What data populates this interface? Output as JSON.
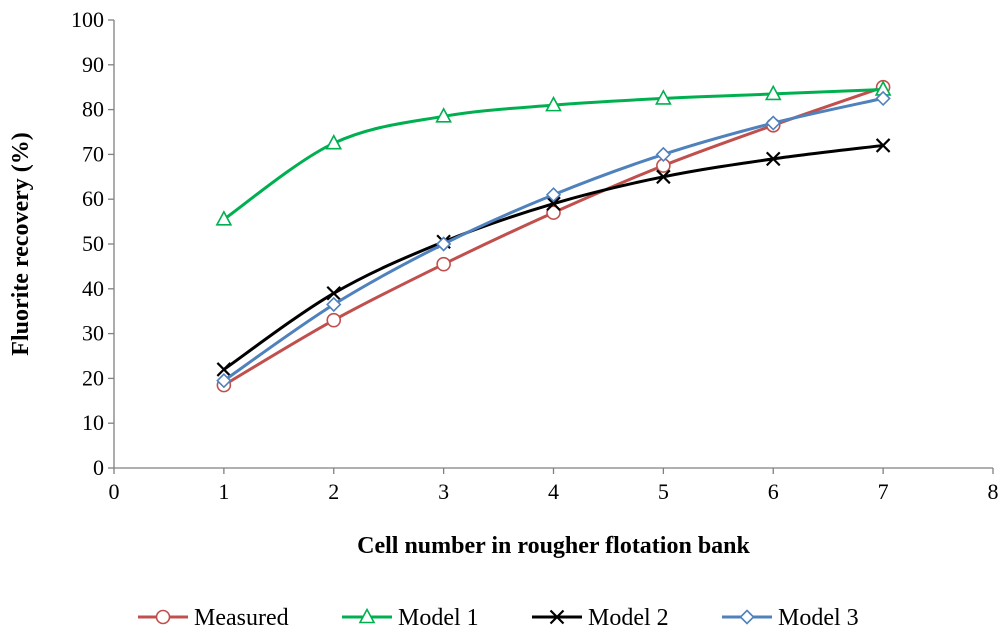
{
  "chart_data": {
    "type": "line",
    "title": "",
    "xlabel": "Cell number in rougher flotation bank",
    "ylabel": "Fluorite recovery (%)",
    "xlim": [
      0,
      8
    ],
    "ylim": [
      0,
      100
    ],
    "xticks": [
      0,
      1,
      2,
      3,
      4,
      5,
      6,
      7,
      8
    ],
    "yticks": [
      0,
      10,
      20,
      30,
      40,
      50,
      60,
      70,
      80,
      90,
      100
    ],
    "grid": false,
    "legend_position": "bottom",
    "x": [
      1,
      2,
      3,
      4,
      5,
      6,
      7
    ],
    "series": [
      {
        "name": "Measured",
        "color": "#c0504d",
        "marker": "circle",
        "values": [
          18.5,
          33,
          45.5,
          57,
          67.5,
          76.5,
          85
        ]
      },
      {
        "name": "Model 1",
        "color": "#00b050",
        "marker": "triangle",
        "values": [
          55.5,
          72.5,
          78.5,
          81,
          82.5,
          83.5,
          84.5
        ]
      },
      {
        "name": "Model 2",
        "color": "#000000",
        "marker": "x",
        "values": [
          22,
          39,
          50.5,
          59,
          65,
          69,
          72
        ]
      },
      {
        "name": "Model 3",
        "color": "#4f81bd",
        "marker": "diamond",
        "values": [
          19.5,
          36.5,
          50,
          61,
          70,
          77,
          82.5
        ]
      }
    ]
  }
}
